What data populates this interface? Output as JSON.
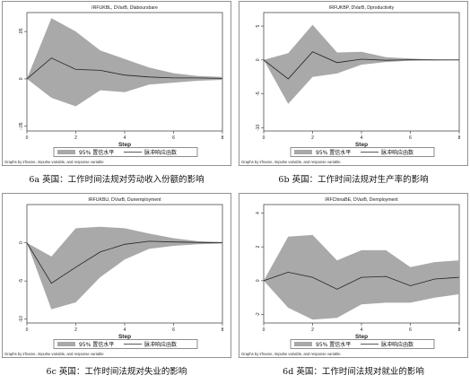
{
  "legend": {
    "band": "95% 置信水平",
    "line": "脉冲响应函数"
  },
  "source_note": "Graphs by irfname, impulse variable, and response variable",
  "xlabel": "Step",
  "chart_data": [
    {
      "type": "area",
      "title": "IRFUKBL, DVarB, Dlaboursbare",
      "caption": "6a 英国：工作时间法规对劳动收入份额的影响",
      "x": [
        0,
        1,
        2,
        3,
        4,
        5,
        6,
        7,
        8
      ],
      "xticks": [
        0,
        2,
        4,
        6,
        8
      ],
      "ylim": [
        -0.055,
        0.07
      ],
      "yticks": [
        {
          "v": 0.05,
          "label": ".05"
        },
        {
          "v": 0,
          "label": "0"
        },
        {
          "v": -0.05,
          "label": "-.05"
        }
      ],
      "series": [
        {
          "name": "脉冲响应函数",
          "values": [
            0,
            0.022,
            0.01,
            0.009,
            0.004,
            0.002,
            0.001,
            0.001,
            0.0005
          ]
        },
        {
          "name": "95% 置信水平",
          "lower": [
            0,
            -0.02,
            -0.029,
            -0.012,
            -0.014,
            -0.006,
            -0.004,
            -0.002,
            -0.001
          ],
          "upper": [
            0,
            0.064,
            0.05,
            0.03,
            0.021,
            0.012,
            0.006,
            0.003,
            0.002
          ]
        }
      ]
    },
    {
      "type": "area",
      "title": "IRFUKBP, DVarB, Dproductivity",
      "caption": "6b 英国：工作时间法规对生产率的影响",
      "x": [
        0,
        1,
        2,
        3,
        4,
        5,
        6,
        7,
        8
      ],
      "xticks": [
        0,
        2,
        4,
        6,
        8
      ],
      "ylim": [
        -10.5,
        7
      ],
      "yticks": [
        {
          "v": 5,
          "label": "5"
        },
        {
          "v": 0,
          "label": "0"
        },
        {
          "v": -5,
          "label": "-5"
        },
        {
          "v": -10,
          "label": "-10"
        }
      ],
      "series": [
        {
          "name": "脉冲响应函数",
          "values": [
            0,
            -2.8,
            1.2,
            -0.4,
            0.1,
            -0.05,
            0.02,
            0,
            0
          ]
        },
        {
          "name": "95% 置信水平",
          "lower": [
            0,
            -6.5,
            -2.5,
            -2.0,
            -0.7,
            -0.3,
            -0.1,
            -0.05,
            0
          ],
          "upper": [
            0,
            1.0,
            5.2,
            1.1,
            1.2,
            0.4,
            0.2,
            0.05,
            0
          ]
        }
      ]
    },
    {
      "type": "area",
      "title": "IRFUKBU, DVarB, Dunemployment",
      "caption": "6c 英国：工作时间法规对失业的影响",
      "x": [
        0,
        1,
        2,
        3,
        4,
        5,
        6,
        7,
        8
      ],
      "xticks": [
        0,
        2,
        4,
        6,
        8
      ],
      "ylim": [
        -10.5,
        5
      ],
      "yticks": [
        {
          "v": 0,
          "label": "0"
        },
        {
          "v": -5,
          "label": "-5"
        },
        {
          "v": -10,
          "label": "-10"
        }
      ],
      "series": [
        {
          "name": "脉冲响应函数",
          "values": [
            0,
            -5.3,
            -3.2,
            -1.2,
            -0.2,
            0.2,
            0.1,
            0.05,
            0
          ]
        },
        {
          "name": "95% 置信水平",
          "lower": [
            0,
            -8.7,
            -7.8,
            -4.5,
            -2.2,
            -0.8,
            -0.4,
            -0.2,
            -0.1
          ],
          "upper": [
            0,
            -1.8,
            1.9,
            2.1,
            1.9,
            1.2,
            0.6,
            0.2,
            0.1
          ]
        }
      ]
    },
    {
      "type": "area",
      "title": "IRFChinaBE, DVarB, Demployment",
      "caption": "6d 英国：工作时间法规对就业的影响",
      "x": [
        0,
        1,
        2,
        3,
        4,
        5,
        6,
        7,
        8
      ],
      "xticks": [
        0,
        2,
        4,
        6,
        8
      ],
      "ylim": [
        -2.5,
        4.5
      ],
      "yticks": [
        {
          "v": 4,
          "label": "4"
        },
        {
          "v": 2,
          "label": "2"
        },
        {
          "v": 0,
          "label": "0"
        },
        {
          "v": -2,
          "label": "-2"
        }
      ],
      "series": [
        {
          "name": "脉冲响应函数",
          "values": [
            0,
            0.5,
            0.2,
            -0.5,
            0.2,
            0.25,
            -0.3,
            0.1,
            0.2
          ]
        },
        {
          "name": "95% 置信水平",
          "lower": [
            0,
            -1.6,
            -2.3,
            -2.2,
            -1.4,
            -1.3,
            -1.3,
            -1.0,
            -0.8
          ],
          "upper": [
            0,
            2.6,
            2.7,
            1.2,
            1.8,
            1.8,
            0.8,
            1.1,
            1.2
          ]
        }
      ]
    }
  ]
}
